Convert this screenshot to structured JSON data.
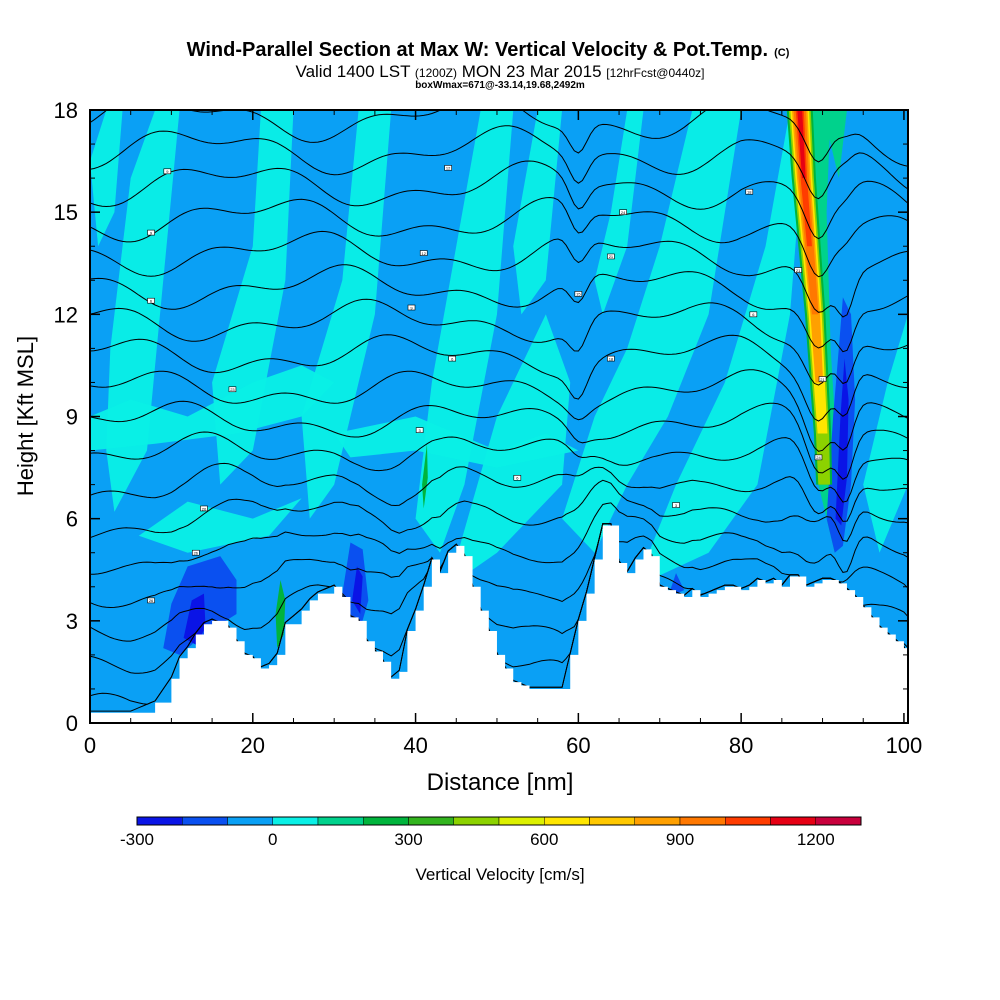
{
  "chart_data": {
    "type": "heatmap",
    "title": "Wind-Parallel Section at Max W: Vertical Velocity & Pot.Temp.",
    "title_mark": "(C)",
    "subtitle_parts": [
      "Valid 1400 LST",
      "(1200Z)",
      "MON 23 Mar 2015",
      "[12hrFcst@0440z]"
    ],
    "box_line": "boxWmax=671@-33.14,19.68,2492m",
    "xlabel": "Distance [nm]",
    "ylabel": "Height [Kft MSL]",
    "xlim": [
      0,
      100.5
    ],
    "ylim": [
      0,
      18
    ],
    "x_ticks": [
      "0",
      "20",
      "40",
      "60",
      "80",
      "100"
    ],
    "x_tick_values": [
      0,
      20,
      40,
      60,
      80,
      100
    ],
    "y_ticks": [
      "0",
      "3",
      "6",
      "9",
      "12",
      "15",
      "18"
    ],
    "y_tick_values": [
      0,
      3,
      6,
      9,
      12,
      15,
      18
    ],
    "colorbar": {
      "label": "Vertical Velocity [cm/s]",
      "ticks": [
        "-300",
        "0",
        "300",
        "600",
        "900",
        "1200"
      ],
      "tick_values": [
        -300,
        0,
        300,
        600,
        900,
        1200
      ],
      "range": [
        -300,
        1300
      ],
      "levels": [
        -300,
        -200,
        -100,
        0,
        100,
        200,
        300,
        400,
        500,
        600,
        700,
        800,
        900,
        1000,
        1100,
        1200,
        1300
      ],
      "colors": [
        "#0a14e6",
        "#0a50f0",
        "#0aa0f5",
        "#0af0e6",
        "#00d28c",
        "#00b43c",
        "#32b41e",
        "#8cd200",
        "#dcf000",
        "#ffe600",
        "#ffc800",
        "#ffa000",
        "#ff7800",
        "#ff3c00",
        "#e60014",
        "#c8003c"
      ]
    },
    "terrain_profile": {
      "distance_nm": [
        0,
        5,
        8,
        10,
        11,
        12,
        13,
        14,
        15,
        17,
        18,
        19,
        20,
        21,
        22,
        23,
        24,
        26,
        27,
        28,
        30,
        31,
        32,
        33,
        34,
        35,
        36,
        37,
        38,
        39,
        40,
        41,
        42,
        43,
        44,
        45,
        46,
        47,
        48,
        49,
        50,
        51,
        52,
        53,
        54,
        55,
        56,
        57,
        58,
        59,
        60,
        61,
        62,
        63,
        64,
        65,
        66,
        67,
        68,
        69,
        70,
        71,
        72,
        73,
        74,
        75,
        76,
        77,
        78,
        79,
        80,
        81,
        82,
        83,
        84,
        85,
        86,
        87,
        88,
        89,
        90,
        91,
        92,
        93,
        94,
        95,
        96,
        97,
        98,
        99,
        100,
        100.5
      ],
      "height_kft": [
        0.3,
        0.3,
        0.6,
        1.3,
        1.9,
        2.2,
        2.6,
        2.9,
        3.0,
        2.8,
        2.4,
        2.0,
        1.9,
        1.6,
        1.7,
        2.0,
        2.9,
        3.3,
        3.6,
        3.8,
        4.0,
        3.7,
        3.1,
        3.0,
        2.4,
        2.1,
        1.8,
        1.3,
        1.5,
        2.7,
        3.3,
        4.0,
        4.8,
        4.4,
        5.0,
        5.2,
        4.9,
        4.0,
        3.3,
        2.7,
        2.0,
        1.6,
        1.2,
        1.1,
        1.0,
        1.0,
        1.0,
        1.0,
        1.0,
        2.0,
        3.0,
        3.8,
        4.8,
        5.8,
        5.8,
        4.7,
        4.4,
        4.8,
        5.1,
        4.9,
        4.0,
        3.9,
        3.8,
        3.7,
        3.9,
        3.7,
        3.8,
        3.9,
        4.0,
        4.0,
        3.9,
        4.0,
        4.2,
        4.1,
        4.2,
        4.0,
        4.3,
        4.3,
        4.0,
        4.1,
        4.2,
        4.2,
        4.1,
        3.9,
        3.7,
        3.4,
        3.1,
        2.8,
        2.6,
        2.4,
        2.2,
        1.9
      ]
    },
    "velocity_features_cm_s": [
      {
        "feature": "updraft core",
        "distance_nm": 89.5,
        "height_kft": [
          7,
          18
        ],
        "max": 1250
      },
      {
        "feature": "downdraft",
        "distance_nm": 92.5,
        "height_kft": [
          5,
          12
        ],
        "min": -280
      },
      {
        "feature": "downdraft",
        "distance_nm": 13.5,
        "height_kft": [
          2.5,
          4.5
        ],
        "min": -250
      },
      {
        "feature": "downdraft",
        "distance_nm": 32.5,
        "height_kft": [
          3,
          5
        ],
        "min": -230
      },
      {
        "feature": "weak ascent",
        "distance_nm": 23.5,
        "height_kft": [
          2,
          4
        ],
        "max": 220
      }
    ],
    "isentrope_labels": [
      "26",
      "26",
      "20",
      "23",
      "6",
      "9",
      "9",
      "3",
      "6",
      "6",
      "9",
      "12",
      "12",
      "15",
      "18",
      "21",
      "24",
      "3",
      "6",
      "18",
      "21",
      "21",
      "24",
      "27",
      "24",
      "21",
      "24",
      "27",
      "30",
      "30",
      "33",
      "33",
      "36"
    ]
  }
}
